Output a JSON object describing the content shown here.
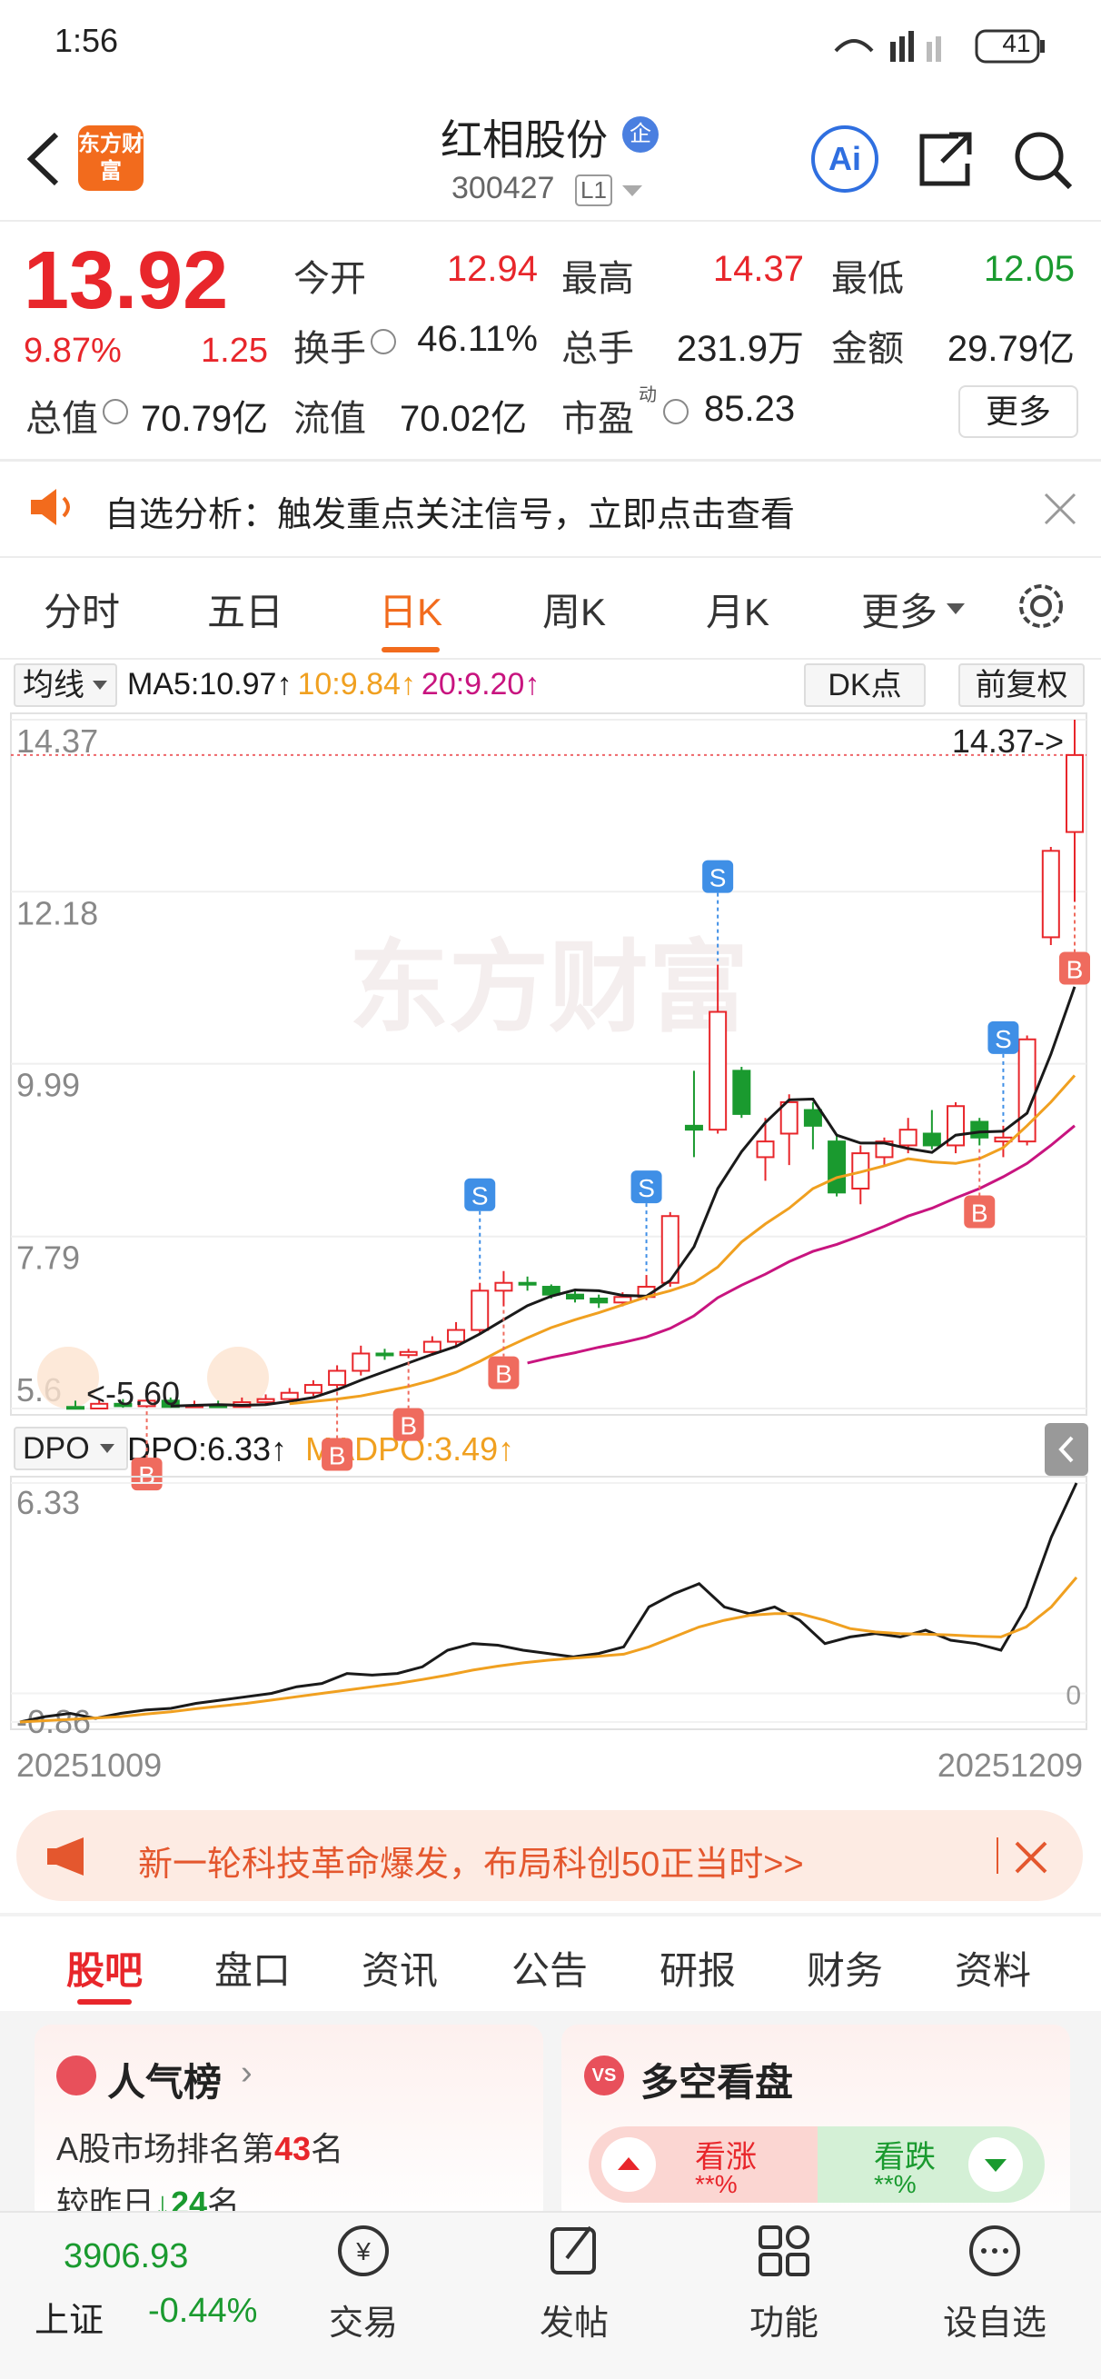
{
  "status_bar": {
    "time": "1:56",
    "battery": "41"
  },
  "header": {
    "logo": "东方财富",
    "title": "红相股份",
    "badge": "企",
    "code": "300427",
    "level": "L1",
    "ai": "Ai"
  },
  "quote": {
    "price": "13.92",
    "change_pct": "9.87%",
    "change": "1.25",
    "row1": [
      {
        "label": "今开",
        "value": "12.94"
      },
      {
        "label": "最高",
        "value": "14.37"
      },
      {
        "label": "最低",
        "value": "12.05"
      }
    ],
    "row2": [
      {
        "label": "换手",
        "value": "46.11%"
      },
      {
        "label": "总手",
        "value": "231.9万"
      },
      {
        "label": "金额",
        "value": "29.79亿"
      }
    ],
    "row3": [
      {
        "label": "总值",
        "value": "70.79亿"
      },
      {
        "label": "流值",
        "value": "70.02亿"
      },
      {
        "label": "市盈",
        "sup": "动",
        "value": "85.23"
      }
    ],
    "more": "更多"
  },
  "notice": "自选分析：触发重点关注信号，立即点击查看",
  "period_tabs": [
    "分时",
    "五日",
    "日K",
    "周K",
    "月K",
    "更多"
  ],
  "chart_data": [
    {
      "type": "candlestick",
      "selector": "均线",
      "buttons": [
        "DK点",
        "前复权"
      ],
      "watermark": "东方财富",
      "ylim": [
        5.6,
        14.37
      ],
      "yticks": [
        14.37,
        12.18,
        9.99,
        7.79,
        5.6
      ],
      "last_price": 13.92,
      "high_label": "14.37->",
      "low_label": "<-5.60",
      "up_color": "#e8262b",
      "down_color": "#1a9a2f",
      "open": [
        5.62,
        5.6,
        5.66,
        5.63,
        5.7,
        5.62,
        5.64,
        5.62,
        5.68,
        5.72,
        5.8,
        5.9,
        6.08,
        6.3,
        6.28,
        6.32,
        6.45,
        6.6,
        7.1,
        7.2,
        7.15,
        7.05,
        7.0,
        6.95,
        7.02,
        7.2,
        9.2,
        9.15,
        9.9,
        8.8,
        9.1,
        9.4,
        9.0,
        8.4,
        8.8,
        8.95,
        9.1,
        8.95,
        9.25,
        9.0,
        9.0,
        11.6,
        12.94
      ],
      "high": [
        5.7,
        5.72,
        5.72,
        5.75,
        5.74,
        5.7,
        5.7,
        5.74,
        5.78,
        5.86,
        5.96,
        6.15,
        6.4,
        6.36,
        6.36,
        6.52,
        6.7,
        7.2,
        7.35,
        7.28,
        7.18,
        7.1,
        7.05,
        7.08,
        7.3,
        8.1,
        9.9,
        11.25,
        9.95,
        9.3,
        9.6,
        9.5,
        9.1,
        8.95,
        9.05,
        9.3,
        9.4,
        9.5,
        9.3,
        9.2,
        10.35,
        12.75,
        14.37
      ],
      "low": [
        5.6,
        5.6,
        5.61,
        5.61,
        5.61,
        5.62,
        5.61,
        5.62,
        5.64,
        5.68,
        5.76,
        5.86,
        6.02,
        6.22,
        6.24,
        6.28,
        6.4,
        6.55,
        6.9,
        7.1,
        7.0,
        6.95,
        6.88,
        6.9,
        6.98,
        7.15,
        8.8,
        9.1,
        9.3,
        8.5,
        8.7,
        8.9,
        8.3,
        8.2,
        8.7,
        8.85,
        8.9,
        8.85,
        8.95,
        8.8,
        8.95,
        11.5,
        12.05
      ],
      "close": [
        5.6,
        5.66,
        5.63,
        5.7,
        5.62,
        5.64,
        5.62,
        5.68,
        5.72,
        5.8,
        5.9,
        6.08,
        6.3,
        6.28,
        6.32,
        6.45,
        6.6,
        7.1,
        7.2,
        7.18,
        7.05,
        7.0,
        6.95,
        7.02,
        7.15,
        8.05,
        9.15,
        10.65,
        9.35,
        9.0,
        9.5,
        9.2,
        8.35,
        8.85,
        9.0,
        9.15,
        8.95,
        9.45,
        9.05,
        9.05,
        10.3,
        12.7,
        13.92
      ],
      "signals": [
        null,
        null,
        null,
        "B",
        null,
        null,
        null,
        null,
        null,
        null,
        null,
        "B",
        null,
        null,
        "B",
        null,
        null,
        "S",
        "B",
        null,
        null,
        null,
        null,
        null,
        "S",
        null,
        null,
        "S",
        null,
        null,
        null,
        null,
        null,
        null,
        null,
        null,
        null,
        null,
        "B",
        "S",
        null,
        null,
        "B"
      ],
      "series": [
        {
          "name": "MA5:10.97↑",
          "color": "#1a1a1a",
          "values": [
            null,
            null,
            null,
            null,
            5.63,
            5.64,
            5.65,
            5.64,
            5.65,
            5.69,
            5.74,
            5.84,
            5.96,
            6.07,
            6.18,
            6.29,
            6.39,
            6.55,
            6.73,
            6.91,
            7.03,
            7.11,
            7.1,
            7.04,
            7.03,
            7.23,
            7.66,
            8.4,
            8.87,
            9.24,
            9.53,
            9.54,
            9.08,
            8.98,
            8.98,
            8.91,
            8.86,
            9.08,
            9.12,
            9.13,
            9.36,
            10.11,
            10.97
          ]
        },
        {
          "name": "10:9.84↑",
          "color": "#f0a020",
          "values": [
            null,
            null,
            null,
            null,
            null,
            null,
            null,
            null,
            null,
            5.66,
            5.69,
            5.72,
            5.76,
            5.82,
            5.88,
            5.96,
            6.06,
            6.2,
            6.36,
            6.5,
            6.63,
            6.73,
            6.82,
            6.92,
            7.02,
            7.1,
            7.2,
            7.4,
            7.72,
            7.95,
            8.15,
            8.4,
            8.54,
            8.61,
            8.69,
            8.78,
            8.74,
            8.72,
            8.78,
            8.92,
            9.2,
            9.5,
            9.84
          ]
        },
        {
          "name": "20:9.20↑",
          "color": "#c8147f",
          "values": [
            null,
            null,
            null,
            null,
            null,
            null,
            null,
            null,
            null,
            null,
            null,
            null,
            null,
            null,
            null,
            null,
            null,
            null,
            null,
            6.18,
            6.25,
            6.31,
            6.38,
            6.44,
            6.51,
            6.62,
            6.78,
            7.01,
            7.17,
            7.31,
            7.47,
            7.6,
            7.69,
            7.8,
            7.92,
            8.05,
            8.15,
            8.28,
            8.4,
            8.55,
            8.72,
            8.95,
            9.2
          ]
        }
      ]
    },
    {
      "type": "line",
      "selector": "DPO",
      "ylim": [
        -0.86,
        6.33
      ],
      "yticks": [
        6.33,
        0,
        -0.86
      ],
      "x_labels": [
        "20251009",
        "20251209"
      ],
      "series": [
        {
          "name": "DPO:6.33↑",
          "color": "#1a1a1a",
          "values": [
            -0.86,
            -0.7,
            -0.6,
            -0.75,
            -0.6,
            -0.5,
            -0.45,
            -0.3,
            -0.2,
            -0.1,
            0.0,
            0.2,
            0.3,
            0.6,
            0.55,
            0.6,
            0.8,
            1.3,
            1.5,
            1.45,
            1.3,
            1.2,
            1.1,
            1.2,
            1.4,
            2.6,
            3.0,
            3.3,
            2.6,
            2.4,
            2.6,
            2.2,
            1.5,
            1.7,
            1.8,
            1.7,
            1.9,
            1.6,
            1.5,
            1.3,
            2.6,
            4.7,
            6.33
          ]
        },
        {
          "name": "MADPO:3.49↑",
          "color": "#f0a020",
          "values": [
            -0.86,
            -0.82,
            -0.78,
            -0.74,
            -0.7,
            -0.62,
            -0.55,
            -0.46,
            -0.38,
            -0.3,
            -0.2,
            -0.1,
            0.0,
            0.1,
            0.2,
            0.3,
            0.42,
            0.55,
            0.7,
            0.82,
            0.92,
            1.0,
            1.06,
            1.12,
            1.18,
            1.4,
            1.7,
            2.0,
            2.2,
            2.35,
            2.4,
            2.4,
            2.2,
            1.95,
            1.85,
            1.8,
            1.78,
            1.76,
            1.72,
            1.7,
            2.0,
            2.6,
            3.49
          ]
        }
      ]
    }
  ],
  "ad": "新一轮科技革命爆发，布局科创50正当时>>",
  "content_tabs": [
    "股吧",
    "盘口",
    "资讯",
    "公告",
    "研报",
    "财务",
    "资料"
  ],
  "cards": {
    "popularity": {
      "title": "人气榜",
      "line1": [
        "A股市场排名第",
        "43",
        "名"
      ],
      "line2": [
        "较昨日",
        "24",
        "名"
      ]
    },
    "sentiment": {
      "title": "多空看盘",
      "up": "看涨",
      "up_value": "**%",
      "down": "看跌",
      "down_value": "**%"
    }
  },
  "bottom_bar": {
    "index_value": "3906.93",
    "index_name": "上证",
    "index_change": "-0.44%",
    "items": [
      "交易",
      "发帖",
      "功能",
      "设自选"
    ]
  }
}
